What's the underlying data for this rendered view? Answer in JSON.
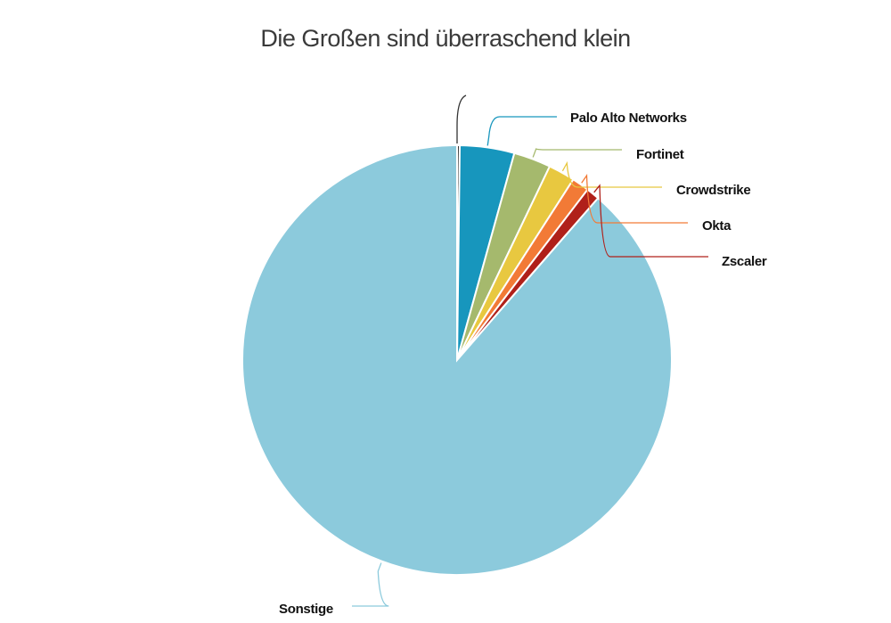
{
  "chart_data": {
    "type": "pie",
    "title": "Die Großen sind überraschend klein",
    "start": "top",
    "direction": "clockwise",
    "slices": [
      {
        "label": "",
        "value": 0.2,
        "color": "#333333"
      },
      {
        "label": "Palo Alto Networks",
        "value": 4.1,
        "color": "#1796bd"
      },
      {
        "label": "Fortinet",
        "value": 2.8,
        "color": "#a5b96d"
      },
      {
        "label": "Crowdstrike",
        "value": 2.0,
        "color": "#e8c840"
      },
      {
        "label": "Okta",
        "value": 1.3,
        "color": "#f27a36"
      },
      {
        "label": "Zscaler",
        "value": 1.0,
        "color": "#b0201a"
      },
      {
        "label": "Sonstige",
        "value": 88.6,
        "color": "#8ccadc"
      }
    ]
  }
}
